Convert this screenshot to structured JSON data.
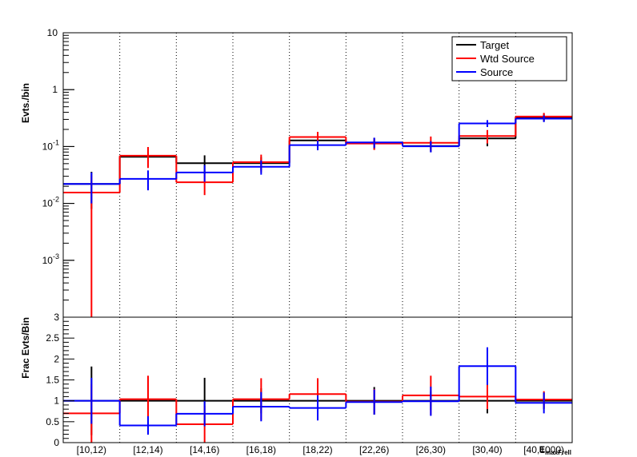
{
  "chart_data": [
    {
      "type": "histogram",
      "scale": "log",
      "ylabel": "Evts./bin",
      "ylim": [
        0.0001,
        10
      ],
      "y_tick_labels": [
        {
          "value": 10,
          "mantissa": "10",
          "exp": ""
        },
        {
          "value": 1,
          "mantissa": "1",
          "exp": ""
        },
        {
          "value": 0.1,
          "mantissa": "10",
          "exp": "-1"
        },
        {
          "value": 0.01,
          "mantissa": "10",
          "exp": "-2"
        },
        {
          "value": 0.001,
          "mantissa": "10",
          "exp": "-3"
        }
      ],
      "categories": [
        "[10,12)",
        "[12,14)",
        "[14,16)",
        "[16,18)",
        "[18,22)",
        "[22,26)",
        "[26,30)",
        "[30,40)",
        "[40,1000)"
      ],
      "series": [
        {
          "name": "Target",
          "color": "#000000",
          "values": [
            0.022,
            0.066,
            0.051,
            0.051,
            0.128,
            0.115,
            0.102,
            0.139,
            0.326
          ],
          "err_low": [
            0.014,
            0.02,
            0.018,
            0.013,
            0.027,
            0.025,
            0.022,
            0.038,
            0.05
          ],
          "err_high": [
            0.014,
            0.022,
            0.019,
            0.014,
            0.028,
            0.026,
            0.023,
            0.04,
            0.052
          ]
        },
        {
          "name": "Wtd Source",
          "color": "#ff0000",
          "values": [
            0.0155,
            0.069,
            0.0235,
            0.053,
            0.147,
            0.113,
            0.116,
            0.153,
            0.336
          ],
          "err_low": [
            0.01545,
            0.027,
            0.0095,
            0.018,
            0.033,
            0.026,
            0.033,
            0.04,
            0.052
          ],
          "err_high": [
            0.016,
            0.029,
            0.01,
            0.019,
            0.034,
            0.027,
            0.034,
            0.042,
            0.054
          ]
        },
        {
          "name": "Source",
          "color": "#0000ff",
          "values": [
            0.022,
            0.027,
            0.035,
            0.044,
            0.106,
            0.118,
            0.101,
            0.255,
            0.309
          ],
          "err_low": [
            0.012,
            0.01,
            0.011,
            0.012,
            0.02,
            0.024,
            0.022,
            0.035,
            0.04
          ],
          "err_high": [
            0.013,
            0.011,
            0.012,
            0.013,
            0.021,
            0.025,
            0.023,
            0.036,
            0.042
          ]
        }
      ],
      "legend": {
        "entries": [
          "Target",
          "Wtd Source",
          "Source"
        ],
        "placement": "top-right"
      },
      "grid": "vertical dotted"
    },
    {
      "type": "histogram",
      "ylabel": "Frac Evts/Bin",
      "ylim": [
        0,
        3
      ],
      "y_tick_labels": [
        "0",
        "0.5",
        "1",
        "1.5",
        "2",
        "2.5",
        "3"
      ],
      "xlabel": "E_maxFrell",
      "xlabel_main": "E",
      "xlabel_sub": "maxFrell",
      "categories": [
        "[10,12)",
        "[12,14)",
        "[14,16)",
        "[16,18)",
        "[18,22)",
        "[22,26)",
        "[26,30)",
        "[30,40)",
        "[40,1000)"
      ],
      "series": [
        {
          "name": "Target",
          "color": "#000000",
          "values": [
            1,
            1,
            1,
            1,
            1,
            1,
            1,
            1,
            1
          ],
          "err_low": [
            0.82,
            0.35,
            0.55,
            0.3,
            0.22,
            0.33,
            0.22,
            0.3,
            0.2
          ],
          "err_high": [
            0.82,
            0.35,
            0.55,
            0.3,
            0.22,
            0.33,
            0.22,
            0.3,
            0.2
          ]
        },
        {
          "name": "Wtd Source",
          "color": "#ff0000",
          "values": [
            0.7,
            1.04,
            0.44,
            1.04,
            1.16,
            0.98,
            1.13,
            1.1,
            1.03
          ],
          "err_low": [
            0.7,
            0.56,
            0.44,
            0.5,
            0.38,
            0.3,
            0.47,
            0.3,
            0.2
          ],
          "err_high": [
            0.7,
            0.56,
            0.44,
            0.5,
            0.38,
            0.3,
            0.47,
            0.3,
            0.2
          ]
        },
        {
          "name": "Source",
          "color": "#0000ff",
          "values": [
            1.0,
            0.41,
            0.69,
            0.86,
            0.83,
            0.97,
            0.99,
            1.83,
            0.95
          ],
          "err_low": [
            0.55,
            0.22,
            0.3,
            0.35,
            0.3,
            0.3,
            0.35,
            0.45,
            0.25
          ],
          "err_high": [
            0.55,
            0.22,
            0.3,
            0.35,
            0.3,
            0.3,
            0.35,
            0.45,
            0.25
          ]
        }
      ],
      "grid": "vertical dotted"
    }
  ]
}
